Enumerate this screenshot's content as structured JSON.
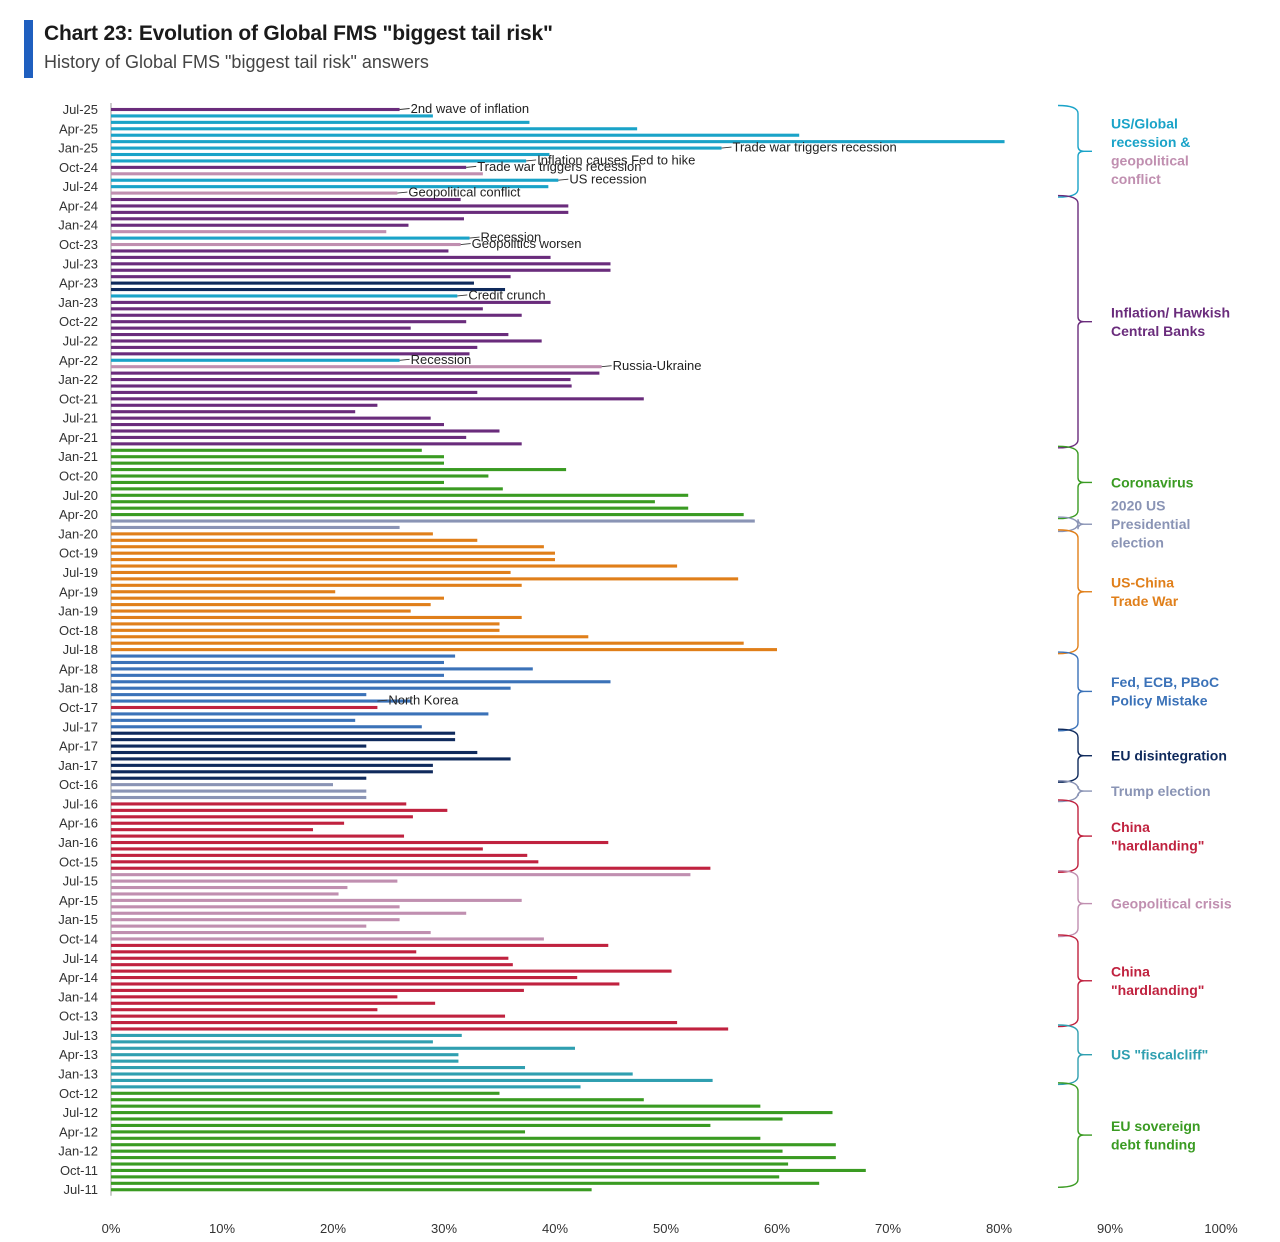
{
  "title": "Chart 23: Evolution of Global FMS \"biggest tail risk\"",
  "subtitle": "History of Global FMS \"biggest tail risk\" answers",
  "accent_color": "#1f5fbf",
  "colors": {
    "us_global": "#1aa3c8",
    "geopolitical_conflict": "#c08fb0",
    "inflation": "#6a2c7c",
    "coronavirus": "#3a9b22",
    "election2020": "#8a94b5",
    "trade_war": "#e07f1a",
    "policy_mistake": "#3b72b8",
    "eu_disintegration": "#0f2a5c",
    "trump_election": "#8a94b5",
    "china": "#c0223f",
    "geopolitical_crisis": "#c08fb0",
    "fiscal_cliff": "#2f9fb0",
    "eu_debt": "#3a9b22"
  },
  "chart_data": {
    "type": "bar",
    "orientation": "horizontal",
    "xlim": [
      0,
      100
    ],
    "x_ticks": [
      "0%",
      "10%",
      "20%",
      "30%",
      "40%",
      "50%",
      "60%",
      "70%",
      "80%",
      "90%",
      "100%"
    ],
    "y_tick_labels": [
      "Jul-25",
      "Apr-25",
      "Jan-25",
      "Oct-24",
      "Jul-24",
      "Apr-24",
      "Jan-24",
      "Oct-23",
      "Jul-23",
      "Apr-23",
      "Jan-23",
      "Oct-22",
      "Jul-22",
      "Apr-22",
      "Jan-22",
      "Oct-21",
      "Jul-21",
      "Apr-21",
      "Jan-21",
      "Oct-20",
      "Jul-20",
      "Apr-20",
      "Jan-20",
      "Oct-19",
      "Jul-19",
      "Apr-19",
      "Jan-19",
      "Oct-18",
      "Jul-18",
      "Apr-18",
      "Jan-18",
      "Oct-17",
      "Jul-17",
      "Apr-17",
      "Jan-17",
      "Oct-16",
      "Jul-16",
      "Apr-16",
      "Jan-16",
      "Oct-15",
      "Jul-15",
      "Apr-15",
      "Jan-15",
      "Oct-14",
      "Jul-14",
      "Apr-14",
      "Jan-14",
      "Oct-13",
      "Jul-13",
      "Apr-13",
      "Jan-13",
      "Oct-12",
      "Jul-12",
      "Apr-12",
      "Jan-12",
      "Oct-11",
      "Jul-11"
    ],
    "bars": [
      {
        "v": 26,
        "c": "inflation"
      },
      {
        "v": 29,
        "c": "us_global"
      },
      {
        "v": 37.7,
        "c": "us_global"
      },
      {
        "v": 47.4,
        "c": "us_global"
      },
      {
        "v": 62,
        "c": "us_global"
      },
      {
        "v": 80.5,
        "c": "us_global"
      },
      {
        "v": 55,
        "c": "us_global"
      },
      {
        "v": 39.5,
        "c": "us_global"
      },
      {
        "v": 37.4,
        "c": "us_global"
      },
      {
        "v": 32,
        "c": "inflation"
      },
      {
        "v": 33.5,
        "c": "geopolitical_conflict"
      },
      {
        "v": 40.3,
        "c": "us_global"
      },
      {
        "v": 39.4,
        "c": "us_global"
      },
      {
        "v": 25.8,
        "c": "geopolitical_conflict"
      },
      {
        "v": 31.5,
        "c": "inflation"
      },
      {
        "v": 41.2,
        "c": "inflation"
      },
      {
        "v": 41.2,
        "c": "inflation"
      },
      {
        "v": 31.8,
        "c": "inflation"
      },
      {
        "v": 26.8,
        "c": "inflation"
      },
      {
        "v": 24.8,
        "c": "geopolitical_conflict"
      },
      {
        "v": 32.3,
        "c": "us_global"
      },
      {
        "v": 31.5,
        "c": "geopolitical_conflict"
      },
      {
        "v": 30.4,
        "c": "inflation"
      },
      {
        "v": 39.6,
        "c": "inflation"
      },
      {
        "v": 45,
        "c": "inflation"
      },
      {
        "v": 45,
        "c": "inflation"
      },
      {
        "v": 36,
        "c": "inflation"
      },
      {
        "v": 32.7,
        "c": "eu_disintegration"
      },
      {
        "v": 35.5,
        "c": "eu_disintegration"
      },
      {
        "v": 31.2,
        "c": "us_global"
      },
      {
        "v": 39.6,
        "c": "inflation"
      },
      {
        "v": 33.5,
        "c": "inflation"
      },
      {
        "v": 37,
        "c": "inflation"
      },
      {
        "v": 32,
        "c": "inflation"
      },
      {
        "v": 27,
        "c": "inflation"
      },
      {
        "v": 35.8,
        "c": "inflation"
      },
      {
        "v": 38.8,
        "c": "inflation"
      },
      {
        "v": 33,
        "c": "inflation"
      },
      {
        "v": 32.3,
        "c": "inflation"
      },
      {
        "v": 26,
        "c": "us_global"
      },
      {
        "v": 44.2,
        "c": "geopolitical_conflict"
      },
      {
        "v": 44,
        "c": "inflation"
      },
      {
        "v": 41.4,
        "c": "inflation"
      },
      {
        "v": 41.5,
        "c": "inflation"
      },
      {
        "v": 33,
        "c": "inflation"
      },
      {
        "v": 48,
        "c": "inflation"
      },
      {
        "v": 24,
        "c": "inflation"
      },
      {
        "v": 22,
        "c": "inflation"
      },
      {
        "v": 28.8,
        "c": "inflation"
      },
      {
        "v": 30,
        "c": "inflation"
      },
      {
        "v": 35,
        "c": "inflation"
      },
      {
        "v": 32,
        "c": "inflation"
      },
      {
        "v": 37,
        "c": "inflation"
      },
      {
        "v": 28,
        "c": "coronavirus"
      },
      {
        "v": 30,
        "c": "coronavirus"
      },
      {
        "v": 30,
        "c": "coronavirus"
      },
      {
        "v": 41,
        "c": "coronavirus"
      },
      {
        "v": 34,
        "c": "coronavirus"
      },
      {
        "v": 30,
        "c": "coronavirus"
      },
      {
        "v": 35.3,
        "c": "coronavirus"
      },
      {
        "v": 52,
        "c": "coronavirus"
      },
      {
        "v": 49,
        "c": "coronavirus"
      },
      {
        "v": 52,
        "c": "coronavirus"
      },
      {
        "v": 57,
        "c": "coronavirus"
      },
      {
        "v": 58,
        "c": "election2020"
      },
      {
        "v": 26,
        "c": "election2020"
      },
      {
        "v": 29,
        "c": "trade_war"
      },
      {
        "v": 33,
        "c": "trade_war"
      },
      {
        "v": 39,
        "c": "trade_war"
      },
      {
        "v": 40,
        "c": "trade_war"
      },
      {
        "v": 40,
        "c": "trade_war"
      },
      {
        "v": 51,
        "c": "trade_war"
      },
      {
        "v": 36,
        "c": "trade_war"
      },
      {
        "v": 56.5,
        "c": "trade_war"
      },
      {
        "v": 37,
        "c": "trade_war"
      },
      {
        "v": 20.2,
        "c": "trade_war"
      },
      {
        "v": 30,
        "c": "trade_war"
      },
      {
        "v": 28.8,
        "c": "trade_war"
      },
      {
        "v": 27,
        "c": "trade_war"
      },
      {
        "v": 37,
        "c": "trade_war"
      },
      {
        "v": 35,
        "c": "trade_war"
      },
      {
        "v": 35,
        "c": "trade_war"
      },
      {
        "v": 43,
        "c": "trade_war"
      },
      {
        "v": 57,
        "c": "trade_war"
      },
      {
        "v": 60,
        "c": "trade_war"
      },
      {
        "v": 31,
        "c": "policy_mistake"
      },
      {
        "v": 30,
        "c": "policy_mistake"
      },
      {
        "v": 38,
        "c": "policy_mistake"
      },
      {
        "v": 30,
        "c": "policy_mistake"
      },
      {
        "v": 45,
        "c": "policy_mistake"
      },
      {
        "v": 36,
        "c": "policy_mistake"
      },
      {
        "v": 23,
        "c": "policy_mistake"
      },
      {
        "v": 27,
        "c": "policy_mistake"
      },
      {
        "v": 24,
        "c": "china"
      },
      {
        "v": 34,
        "c": "policy_mistake"
      },
      {
        "v": 22,
        "c": "policy_mistake"
      },
      {
        "v": 28,
        "c": "policy_mistake"
      },
      {
        "v": 31,
        "c": "eu_disintegration"
      },
      {
        "v": 31,
        "c": "eu_disintegration"
      },
      {
        "v": 23,
        "c": "eu_disintegration"
      },
      {
        "v": 33,
        "c": "eu_disintegration"
      },
      {
        "v": 36,
        "c": "eu_disintegration"
      },
      {
        "v": 29,
        "c": "eu_disintegration"
      },
      {
        "v": 29,
        "c": "eu_disintegration"
      },
      {
        "v": 23,
        "c": "eu_disintegration"
      },
      {
        "v": 20,
        "c": "trump_election"
      },
      {
        "v": 23,
        "c": "trump_election"
      },
      {
        "v": 23,
        "c": "trump_election"
      },
      {
        "v": 26.6,
        "c": "china"
      },
      {
        "v": 30.3,
        "c": "china"
      },
      {
        "v": 27.2,
        "c": "china"
      },
      {
        "v": 21,
        "c": "china"
      },
      {
        "v": 18.2,
        "c": "china"
      },
      {
        "v": 26.4,
        "c": "china"
      },
      {
        "v": 44.8,
        "c": "china"
      },
      {
        "v": 33.5,
        "c": "china"
      },
      {
        "v": 37.5,
        "c": "china"
      },
      {
        "v": 38.5,
        "c": "china"
      },
      {
        "v": 54,
        "c": "china"
      },
      {
        "v": 52.2,
        "c": "geopolitical_crisis"
      },
      {
        "v": 25.8,
        "c": "geopolitical_crisis"
      },
      {
        "v": 21.3,
        "c": "geopolitical_crisis"
      },
      {
        "v": 20.5,
        "c": "geopolitical_crisis"
      },
      {
        "v": 37,
        "c": "geopolitical_crisis"
      },
      {
        "v": 26,
        "c": "geopolitical_crisis"
      },
      {
        "v": 32,
        "c": "geopolitical_crisis"
      },
      {
        "v": 26,
        "c": "geopolitical_crisis"
      },
      {
        "v": 23,
        "c": "geopolitical_crisis"
      },
      {
        "v": 28.8,
        "c": "geopolitical_crisis"
      },
      {
        "v": 39,
        "c": "geopolitical_crisis"
      },
      {
        "v": 44.8,
        "c": "china"
      },
      {
        "v": 27.5,
        "c": "china"
      },
      {
        "v": 35.8,
        "c": "china"
      },
      {
        "v": 36.2,
        "c": "china"
      },
      {
        "v": 50.5,
        "c": "china"
      },
      {
        "v": 42,
        "c": "china"
      },
      {
        "v": 45.8,
        "c": "china"
      },
      {
        "v": 37.2,
        "c": "china"
      },
      {
        "v": 25.8,
        "c": "china"
      },
      {
        "v": 29.2,
        "c": "china"
      },
      {
        "v": 24,
        "c": "china"
      },
      {
        "v": 35.5,
        "c": "china"
      },
      {
        "v": 51,
        "c": "china"
      },
      {
        "v": 55.6,
        "c": "china"
      },
      {
        "v": 31.6,
        "c": "fiscal_cliff"
      },
      {
        "v": 29,
        "c": "fiscal_cliff"
      },
      {
        "v": 41.8,
        "c": "fiscal_cliff"
      },
      {
        "v": 31.3,
        "c": "fiscal_cliff"
      },
      {
        "v": 31.3,
        "c": "fiscal_cliff"
      },
      {
        "v": 37.3,
        "c": "fiscal_cliff"
      },
      {
        "v": 47,
        "c": "fiscal_cliff"
      },
      {
        "v": 54.2,
        "c": "fiscal_cliff"
      },
      {
        "v": 42.3,
        "c": "fiscal_cliff"
      },
      {
        "v": 35,
        "c": "eu_debt"
      },
      {
        "v": 48,
        "c": "eu_debt"
      },
      {
        "v": 58.5,
        "c": "eu_debt"
      },
      {
        "v": 65,
        "c": "eu_debt"
      },
      {
        "v": 60.5,
        "c": "eu_debt"
      },
      {
        "v": 54,
        "c": "eu_debt"
      },
      {
        "v": 37.3,
        "c": "eu_debt"
      },
      {
        "v": 58.5,
        "c": "eu_debt"
      },
      {
        "v": 65.3,
        "c": "eu_debt"
      },
      {
        "v": 60.5,
        "c": "eu_debt"
      },
      {
        "v": 65.3,
        "c": "eu_debt"
      },
      {
        "v": 61,
        "c": "eu_debt"
      },
      {
        "v": 68,
        "c": "eu_debt"
      },
      {
        "v": 60.2,
        "c": "eu_debt"
      },
      {
        "v": 63.8,
        "c": "eu_debt"
      },
      {
        "v": 43.3,
        "c": "eu_debt"
      }
    ],
    "annotations": [
      {
        "text": "2nd wave of inflation",
        "bar": 0,
        "at": 26
      },
      {
        "text": "Trade war triggers recession",
        "bar": 6,
        "at": 55
      },
      {
        "text": "Inflation causes Fed to hike",
        "bar": 8,
        "at": 37.4
      },
      {
        "text": "Trade war triggers recession",
        "bar": 9,
        "at": 32
      },
      {
        "text": "US recession",
        "bar": 11,
        "at": 40.3
      },
      {
        "text": "Geopolitical conflict",
        "bar": 13,
        "at": 25.8
      },
      {
        "text": "Recession",
        "bar": 20,
        "at": 32.3
      },
      {
        "text": "Geopolitics worsen",
        "bar": 21,
        "at": 31.5
      },
      {
        "text": "Credit crunch",
        "bar": 29,
        "at": 31.2
      },
      {
        "text": "Recession",
        "bar": 39,
        "at": 26
      },
      {
        "text": "Russia-Ukraine",
        "bar": 40,
        "at": 44.2
      },
      {
        "text": "North Korea",
        "bar": 92,
        "at": 24
      }
    ],
    "groups": [
      {
        "lines": [
          "US/Global",
          "recession &"
        ],
        "extra": [
          "geopolitical",
          "conflict"
        ],
        "c": "us_global",
        "extra_c": "geopolitical_conflict",
        "from": 0,
        "to": 13
      },
      {
        "lines": [
          "Inflation/ Hawkish",
          "Central Banks"
        ],
        "c": "inflation",
        "from": 14,
        "to": 52
      },
      {
        "lines": [
          "Coronavirus"
        ],
        "c": "coronavirus",
        "from": 53,
        "to": 63
      },
      {
        "lines": [
          "2020 US",
          "Presidential",
          "election"
        ],
        "c": "election2020",
        "from": 64,
        "to": 65
      },
      {
        "lines": [
          "US-China",
          "Trade War"
        ],
        "c": "trade_war",
        "from": 66,
        "to": 84
      },
      {
        "lines": [
          "Fed, ECB, PBoC",
          "Policy Mistake"
        ],
        "c": "policy_mistake",
        "from": 85,
        "to": 96
      },
      {
        "lines": [
          "EU disintegration"
        ],
        "c": "eu_disintegration",
        "from": 97,
        "to": 104
      },
      {
        "lines": [
          "Trump election"
        ],
        "c": "trump_election",
        "from": 105,
        "to": 107
      },
      {
        "lines": [
          "China",
          "\"hardlanding\""
        ],
        "c": "china",
        "from": 108,
        "to": 118
      },
      {
        "lines": [
          "Geopolitical crisis"
        ],
        "c": "geopolitical_crisis",
        "from": 119,
        "to": 128
      },
      {
        "lines": [
          "China",
          "\"hardlanding\""
        ],
        "c": "china",
        "from": 129,
        "to": 142
      },
      {
        "lines": [
          "US \"fiscalcliff\""
        ],
        "c": "fiscal_cliff",
        "from": 143,
        "to": 151
      },
      {
        "lines": [
          "EU sovereign",
          "debt funding"
        ],
        "c": "eu_debt",
        "from": 152,
        "to": 167
      }
    ]
  }
}
